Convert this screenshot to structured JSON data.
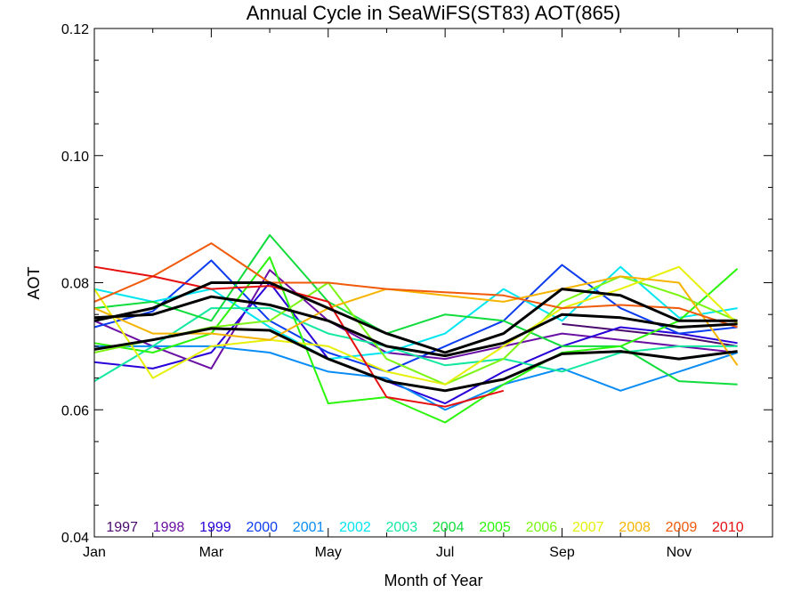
{
  "chart_data": {
    "type": "line",
    "title": "Annual Cycle in SeaWiFS(ST83) AOT(865)",
    "xlabel": "Month of Year",
    "ylabel": "AOT",
    "xlim": [
      1,
      12.6
    ],
    "ylim": [
      0.04,
      0.12
    ],
    "x_ticks": [
      {
        "x": 1,
        "label": "Jan"
      },
      {
        "x": 3,
        "label": "Mar"
      },
      {
        "x": 5,
        "label": "May"
      },
      {
        "x": 7,
        "label": "Jul"
      },
      {
        "x": 9,
        "label": "Sep"
      },
      {
        "x": 11,
        "label": "Nov"
      }
    ],
    "x_minor_ticks": [
      2,
      4,
      6,
      8,
      10,
      12
    ],
    "y_ticks": [
      {
        "y": 0.04,
        "label": "0.04"
      },
      {
        "y": 0.06,
        "label": "0.06"
      },
      {
        "y": 0.08,
        "label": "0.08"
      },
      {
        "y": 0.1,
        "label": "0.10"
      },
      {
        "y": 0.12,
        "label": "0.12"
      }
    ],
    "y_minor_ticks": [
      0.045,
      0.05,
      0.055,
      0.065,
      0.07,
      0.075,
      0.085,
      0.09,
      0.095,
      0.105,
      0.11,
      0.115
    ],
    "x": [
      1,
      2,
      3,
      4,
      5,
      6,
      7,
      8,
      9,
      10,
      11,
      12
    ],
    "grid": false,
    "legend_placement": "bottom",
    "series": [
      {
        "name": "1997",
        "color": "#4b0a6e",
        "values": [
          null,
          null,
          null,
          null,
          null,
          null,
          null,
          null,
          0.0735,
          0.0725,
          0.0715,
          0.07
        ]
      },
      {
        "name": "1998",
        "color": "#6a0fa3",
        "values": [
          0.074,
          0.07,
          0.0665,
          0.082,
          0.074,
          0.069,
          0.068,
          0.07,
          0.072,
          0.071,
          0.07,
          0.069
        ]
      },
      {
        "name": "1999",
        "color": "#2a00d9",
        "values": [
          0.0675,
          0.0665,
          0.069,
          0.08,
          0.068,
          0.0645,
          0.061,
          0.066,
          0.07,
          0.073,
          0.072,
          0.0705
        ]
      },
      {
        "name": "2000",
        "color": "#0b3cf0",
        "values": [
          0.073,
          0.0755,
          0.0835,
          0.074,
          0.069,
          0.066,
          0.07,
          0.074,
          0.0828,
          0.076,
          0.072,
          0.073
        ]
      },
      {
        "name": "2001",
        "color": "#0a8cf5",
        "values": [
          0.07,
          0.07,
          0.07,
          0.069,
          0.066,
          0.065,
          0.06,
          0.064,
          0.0665,
          0.063,
          0.066,
          0.069
        ]
      },
      {
        "name": "2002",
        "color": "#00e6f0",
        "values": [
          0.079,
          0.077,
          0.079,
          0.073,
          0.068,
          0.069,
          0.072,
          0.079,
          0.074,
          0.0825,
          0.0745,
          0.076
        ]
      },
      {
        "name": "2003",
        "color": "#14e8a0",
        "values": [
          0.0645,
          0.07,
          0.076,
          0.076,
          0.072,
          0.07,
          0.067,
          0.068,
          0.066,
          0.069,
          0.07,
          0.07
        ]
      },
      {
        "name": "2004",
        "color": "#10dc3c",
        "values": [
          0.076,
          0.077,
          0.074,
          0.0875,
          0.077,
          0.072,
          0.075,
          0.074,
          0.07,
          0.07,
          0.0645,
          0.064
        ]
      },
      {
        "name": "2005",
        "color": "#2af50a",
        "values": [
          0.0705,
          0.069,
          0.072,
          0.084,
          0.061,
          0.062,
          0.058,
          0.064,
          0.069,
          0.07,
          0.074,
          0.0822
        ]
      },
      {
        "name": "2006",
        "color": "#7cf514",
        "values": [
          0.069,
          0.071,
          0.073,
          0.074,
          0.08,
          0.068,
          0.064,
          0.068,
          0.077,
          0.081,
          0.078,
          0.074
        ]
      },
      {
        "name": "2007",
        "color": "#e6f00a",
        "values": [
          0.079,
          0.065,
          0.07,
          0.071,
          0.07,
          0.066,
          0.064,
          0.07,
          0.076,
          0.079,
          0.0825,
          0.0735
        ]
      },
      {
        "name": "2008",
        "color": "#f5b400",
        "values": [
          0.076,
          0.072,
          0.072,
          0.071,
          0.076,
          0.079,
          0.078,
          0.077,
          0.079,
          0.081,
          0.08,
          0.067
        ]
      },
      {
        "name": "2009",
        "color": "#f05a0a",
        "values": [
          0.077,
          0.081,
          0.0862,
          0.08,
          0.08,
          0.079,
          0.0785,
          0.078,
          0.076,
          0.0765,
          0.076,
          0.073
        ]
      },
      {
        "name": "2010",
        "color": "#e60f0f",
        "values": [
          0.0825,
          0.081,
          0.079,
          0.0795,
          0.077,
          0.062,
          0.0605,
          0.063,
          null,
          null,
          null,
          null
        ]
      }
    ],
    "mean_lines": [
      {
        "color": "#000000",
        "values": [
          0.074,
          0.076,
          0.08,
          0.08,
          0.076,
          0.072,
          0.069,
          0.072,
          0.079,
          0.078,
          0.074,
          0.074
        ]
      },
      {
        "color": "#000000",
        "values": [
          0.0745,
          0.075,
          0.0778,
          0.0765,
          0.074,
          0.07,
          0.0685,
          0.0705,
          0.075,
          0.0745,
          0.073,
          0.0735
        ]
      },
      {
        "color": "#000000",
        "values": [
          0.0695,
          0.071,
          0.0728,
          0.0725,
          0.068,
          0.0645,
          0.063,
          0.0648,
          0.0688,
          0.0692,
          0.068,
          0.0692
        ]
      }
    ]
  }
}
